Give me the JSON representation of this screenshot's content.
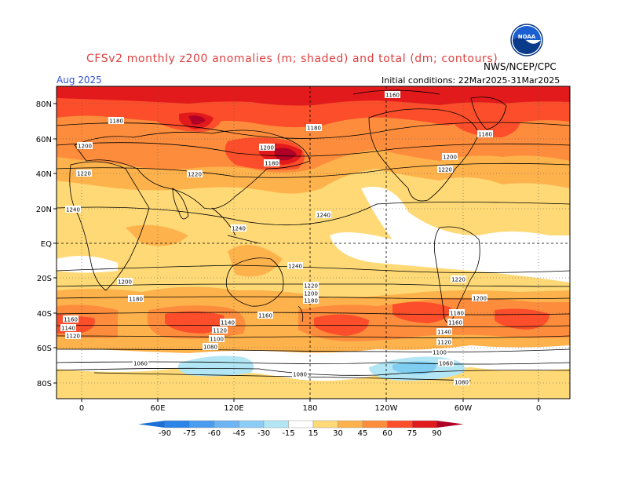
{
  "header": {
    "title": "CFSv2 monthly z200 anomalies (m; shaded) and total (dm; contours)",
    "month": "Aug 2025",
    "agency": "NWS/NCEP/CPC",
    "initial_conditions": "Initial conditions: 22Mar2025-31Mar2025",
    "logo_text": "NOAA"
  },
  "map": {
    "lat_labels": [
      "80N",
      "60N",
      "40N",
      "20N",
      "EQ",
      "20S",
      "40S",
      "60S",
      "80S"
    ],
    "lon_labels": [
      "0",
      "60E",
      "120E",
      "180",
      "120W",
      "60W",
      "0"
    ],
    "contour_labels": [
      "1160",
      "1180",
      "1180",
      "1200",
      "1220",
      "1240",
      "1200",
      "1220",
      "1180",
      "1180",
      "1200",
      "1220",
      "1240",
      "1240",
      "1240",
      "1220",
      "1200",
      "1180",
      "1160",
      "1140",
      "1120",
      "1220",
      "1200",
      "1180",
      "1160",
      "1140",
      "1120",
      "1100",
      "1080",
      "1060",
      "1080",
      "1060",
      "1180",
      "1160",
      "1140",
      "1120",
      "1100",
      "1080",
      "1200"
    ],
    "colors": {
      "ocean_land": "#ffffff",
      "pos15": "#fed976",
      "pos30": "#feb24c",
      "pos45": "#fd8d3c",
      "pos60": "#fc4e2a",
      "pos75": "#e31a1c",
      "pos90": "#b10026",
      "neg15": "#b3e6f5",
      "neg30": "#7fcdf0"
    }
  },
  "colorbar": {
    "ticks": [
      "-90",
      "-75",
      "-60",
      "-45",
      "-30",
      "-15",
      "15",
      "30",
      "45",
      "60",
      "75",
      "90"
    ],
    "colors": [
      "#1c6fd6",
      "#2c84e8",
      "#4a9cf0",
      "#6cb4f3",
      "#8ccdf7",
      "#b3e6f5",
      "#ffffff",
      "#fed976",
      "#feb24c",
      "#fd8d3c",
      "#fc4e2a",
      "#e31a1c",
      "#b10026"
    ]
  }
}
